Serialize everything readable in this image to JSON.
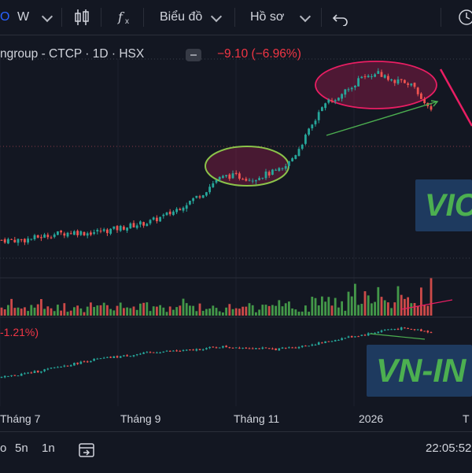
{
  "toolbar": {
    "symbol_fragment": "O",
    "interval": "W",
    "indicator_fx": "f",
    "chart_type_label": "Biểu đồ",
    "profile_label": "Hồ sơ"
  },
  "header": {
    "title": "ngroup - CTCP · 1D · HSX",
    "change": "−9.10 (−6.96%)"
  },
  "annotations": {
    "vic_label": "VIC",
    "vnindex_label": "VN-IN"
  },
  "indicator": {
    "change_text": "-1.21%)"
  },
  "time_axis": [
    "Tháng 7",
    "Tháng 9",
    "Tháng 11",
    "2026",
    "T"
  ],
  "bottom_bar": {
    "range_1": "o",
    "range_2": "5n",
    "range_3": "1n",
    "clock": "22:05:52"
  },
  "colors": {
    "background": "#131722",
    "up": "#26a69a",
    "down": "#ef5350",
    "green_up": "#4caf50",
    "annotation_red": "#e91e63",
    "annotation_green": "#8bc34a",
    "label_bg": "#1e3a5f"
  },
  "chart_data": [
    {
      "type": "candlestick",
      "title": "",
      "series": [
        {
          "name": "",
          "trend": [
            [
              0,
              100
            ],
            [
              30,
              100
            ],
            [
              50,
              103
            ],
            [
              70,
              106
            ],
            [
              95,
              108
            ],
            [
              110,
              107
            ],
            [
              140,
              110
            ],
            [
              165,
              114
            ],
            [
              190,
              118
            ],
            [
              215,
              126
            ],
            [
              240,
              138
            ],
            [
              260,
              148
            ],
            [
              275,
              160
            ],
            [
              290,
              164
            ],
            [
              305,
              163
            ],
            [
              320,
              161
            ],
            [
              340,
              166
            ],
            [
              360,
              170
            ],
            [
              375,
              185
            ],
            [
              390,
              205
            ],
            [
              405,
              225
            ],
            [
              420,
              240
            ],
            [
              432,
              243
            ],
            [
              445,
              252
            ],
            [
              458,
              260
            ],
            [
              470,
              262
            ],
            [
              482,
              266
            ],
            [
              495,
              260
            ],
            [
              510,
              258
            ],
            [
              525,
              255
            ],
            [
              535,
              238
            ],
            [
              550,
              226
            ]
          ]
        }
      ]
    },
    {
      "type": "bar",
      "title": "",
      "series": [
        {
          "name": "",
          "values": []
        }
      ]
    },
    {
      "type": "line",
      "title": "",
      "series": [
        {
          "name": "",
          "trend": [
            [
              0,
              100
            ],
            [
              40,
              104
            ],
            [
              80,
              109
            ],
            [
              120,
              114
            ],
            [
              160,
              117
            ],
            [
              200,
              120
            ],
            [
              240,
              121
            ],
            [
              280,
              124
            ],
            [
              320,
              123
            ],
            [
              350,
              122
            ],
            [
              380,
              124
            ],
            [
              410,
              127
            ],
            [
              440,
              131
            ],
            [
              470,
              134
            ],
            [
              490,
              137
            ],
            [
              510,
              138
            ],
            [
              530,
              137
            ],
            [
              550,
              135
            ]
          ]
        }
      ]
    }
  ]
}
